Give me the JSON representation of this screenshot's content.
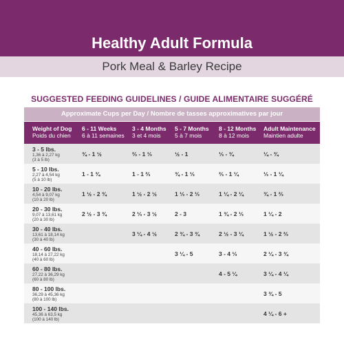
{
  "header": {
    "title": "Healthy Adult Formula",
    "subtitle": "Pork Meal & Barley Recipe"
  },
  "guidelines": {
    "heading": "SUGGESTED FEEDING GUIDELINES / GUIDE ALIMENTAIRE SUGGÉRÉ",
    "approx_label": "Approximate Cups per Day / Nombre de tasses approximatives par jour",
    "columns": [
      {
        "en": "Weight of Dog",
        "fr": "Poids du chien"
      },
      {
        "en": "6 - 11 Weeks",
        "fr": "6 à 11 semaines"
      },
      {
        "en": "3 - 4 Months",
        "fr": "3 et 4 mois"
      },
      {
        "en": "5 - 7 Months",
        "fr": "5 à 7 mois"
      },
      {
        "en": "8 - 12 Months",
        "fr": "8 à 12 mois"
      },
      {
        "en": "Adult Maintenance",
        "fr": "Maintien adulte"
      }
    ],
    "rows": [
      {
        "lbs": "3 - 5 lbs.",
        "kg1": "1,36 à 2,27 kg",
        "kg2": "(3 à 5 lb)",
        "v": [
          "¾ - 1 ½",
          "⅔ - 1 ⅓",
          "½ - 1",
          "⅓ - ¾",
          "¼ - ¾"
        ]
      },
      {
        "lbs": "5 - 10 lbs.",
        "kg1": "2,27 à 4,54 kg",
        "kg2": "(5 à 10 lb)",
        "v": [
          "1 - 1 ¾",
          "1 - 1 ⅔",
          "¾ - 1 ⅓",
          "⅔ - 1 ¼",
          "⅓ - 1 ¼"
        ]
      },
      {
        "lbs": "10 - 20 lbs.",
        "kg1": "4,54 à 9,07 kg",
        "kg2": "(10 à 20 lb)",
        "v": [
          "1 ½ - 2 ¾",
          "1 ½ - 2 ½",
          "1 ⅓ - 2 ⅓",
          "1 ¼ - 2 ¼",
          "¾ - 1 ⅔"
        ]
      },
      {
        "lbs": "20 - 30 lbs.",
        "kg1": "9,07 à 13,61 kg",
        "kg2": "(20 à 30 lb)",
        "v": [
          "2 ½ - 3 ¾",
          "2 ⅓ - 3 ½",
          "2 - 3",
          "1 ¾ - 2 ⅓",
          "1 ¼ - 2"
        ]
      },
      {
        "lbs": "30 - 40 lbs.",
        "kg1": "13,61 à 18,14 kg",
        "kg2": "(30 à 40 lb)",
        "v": [
          "",
          "3 ¼ - 4 ½",
          "2 ¾ - 3 ¾",
          "2 ½ - 3 ¼",
          "1 ½ - 2 ⅔"
        ]
      },
      {
        "lbs": "40 - 60 lbs.",
        "kg1": "18,14 à 27,22 kg",
        "kg2": "(40 à 60 lb)",
        "v": [
          "",
          "",
          "3 ¼ - 5",
          "3 - 4 ⅓",
          "2 ¼ - 3 ¾"
        ]
      },
      {
        "lbs": "60 - 80 lbs.",
        "kg1": "27,22 à 36,29 kg",
        "kg2": "(60 à 80 lb)",
        "v": [
          "",
          "",
          "",
          "4 - 5 ¼",
          "3 ¼ - 4 ¼"
        ]
      },
      {
        "lbs": "80 - 100 lbs.",
        "kg1": "36,29 à 45,36 kg",
        "kg2": "(80 à 100 lb)",
        "v": [
          "",
          "",
          "",
          "",
          "3 ¾ - 5"
        ]
      },
      {
        "lbs": "100 - 140 lbs.",
        "kg1": "45,36 à 63,5 kg",
        "kg2": "(100 à 140 lb)",
        "v": [
          "",
          "",
          "",
          "",
          "4 ¼ - 6 +"
        ]
      }
    ]
  }
}
